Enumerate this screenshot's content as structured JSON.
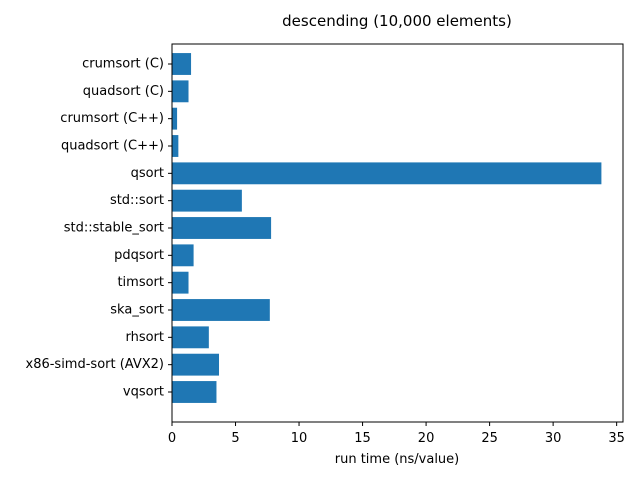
{
  "chart_data": {
    "type": "bar",
    "orientation": "horizontal",
    "title": "descending (10,000 elements)",
    "xlabel": "run time (ns/value)",
    "ylabel": "",
    "categories": [
      "crumsort (C)",
      "quadsort (C)",
      "crumsort (C++)",
      "quadsort (C++)",
      "qsort",
      "std::sort",
      "std::stable_sort",
      "pdqsort",
      "timsort",
      "ska_sort",
      "rhsort",
      "x86-simd-sort (AVX2)",
      "vqsort"
    ],
    "values": [
      1.5,
      1.3,
      0.4,
      0.5,
      33.8,
      5.5,
      7.8,
      1.7,
      1.3,
      7.7,
      2.9,
      3.7,
      3.5
    ],
    "xlim": [
      0,
      35.5
    ],
    "xticks": [
      0,
      5,
      10,
      15,
      20,
      25,
      30,
      35
    ],
    "grid": false,
    "legend": false,
    "colors": {
      "bar": "#1f77b4",
      "axis": "#000000"
    }
  }
}
